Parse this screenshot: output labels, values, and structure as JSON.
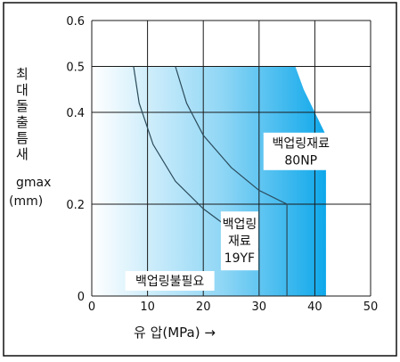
{
  "chart_data": {
    "type": "area",
    "ylabel_chars": [
      "최",
      "대",
      "돌",
      "출",
      "틈",
      "새"
    ],
    "ylabel_sub": "gmax",
    "ylabel_unit": "(mm)",
    "xlabel": "유  압(MPa) →",
    "xlim": [
      0,
      50
    ],
    "ylim": [
      0,
      0.6
    ],
    "xticks": [
      "0",
      "10",
      "20",
      "30",
      "40",
      "50"
    ],
    "yticks": [
      "0",
      "0.2",
      "0.4",
      "0.5",
      "0.6"
    ],
    "ytick_values": [
      0,
      0.2,
      0.4,
      0.5,
      0.6
    ],
    "xtick_values": [
      0,
      10,
      20,
      30,
      40,
      50
    ],
    "grid": true,
    "colors": {
      "light": "#ffffff",
      "deep": "#0aa6ea",
      "line": "#1a1a1a"
    },
    "regions": [
      {
        "label": "백업링불필요",
        "label_lines": [
          "백업링불필요"
        ],
        "boundary": [
          [
            0,
            0.5
          ],
          [
            7.5,
            0.5
          ],
          [
            8.5,
            0.42
          ],
          [
            11,
            0.33
          ],
          [
            15,
            0.25
          ],
          [
            20,
            0.19
          ],
          [
            25,
            0.145
          ],
          [
            30,
            0.1
          ],
          [
            30,
            0
          ]
        ]
      },
      {
        "label": "백업링 재료 19YF",
        "label_lines": [
          "백업링",
          "재료",
          "19YF"
        ],
        "boundary": [
          [
            7.5,
            0.5
          ],
          [
            15,
            0.5
          ],
          [
            17,
            0.42
          ],
          [
            20,
            0.35
          ],
          [
            25,
            0.28
          ],
          [
            30,
            0.23
          ],
          [
            35,
            0.2
          ],
          [
            35,
            0
          ]
        ]
      },
      {
        "label": "백업링재료 80NP",
        "label_lines": [
          "백업링재료",
          "80NP"
        ],
        "boundary": [
          [
            15,
            0.5
          ],
          [
            36.5,
            0.5
          ],
          [
            38,
            0.45
          ],
          [
            40,
            0.4
          ],
          [
            42,
            0.35
          ],
          [
            42,
            0
          ]
        ]
      }
    ]
  }
}
